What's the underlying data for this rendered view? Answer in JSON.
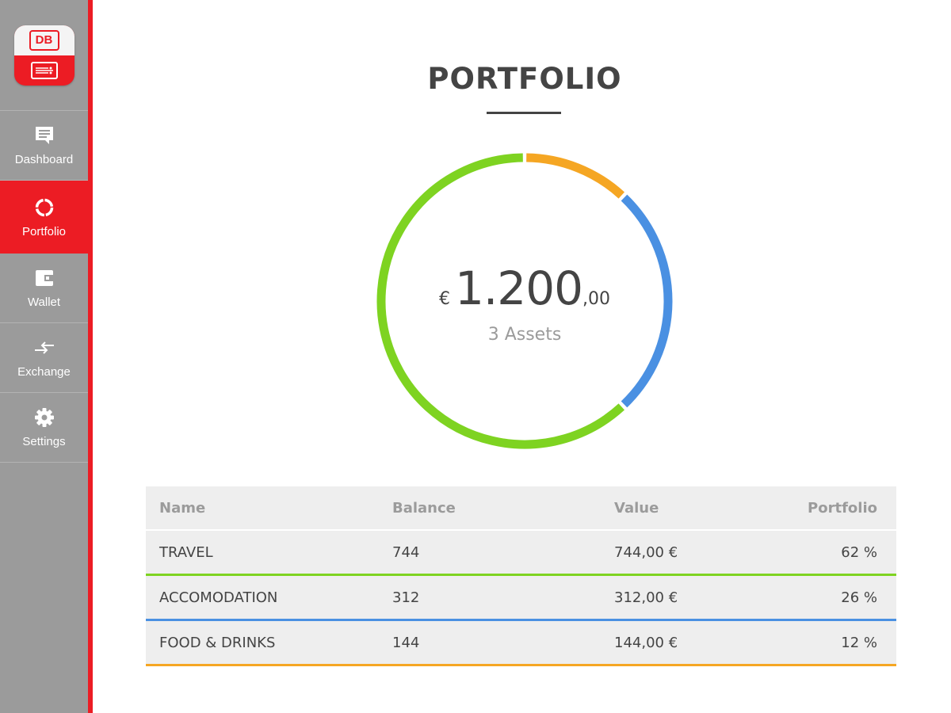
{
  "app": {
    "logo_text": "DB"
  },
  "sidebar": {
    "items": [
      {
        "label": "Dashboard",
        "icon": "chat-bubble-icon",
        "active": false
      },
      {
        "label": "Portfolio",
        "icon": "donut-icon",
        "active": true
      },
      {
        "label": "Wallet",
        "icon": "wallet-icon",
        "active": false
      },
      {
        "label": "Exchange",
        "icon": "exchange-arrows-icon",
        "active": false
      },
      {
        "label": "Settings",
        "icon": "gear-icon",
        "active": false
      }
    ]
  },
  "page": {
    "title": "PORTFOLIO"
  },
  "summary": {
    "currency": "€",
    "amount_integer": "1.200",
    "amount_decimals": ",00",
    "assets_label": "3 Assets"
  },
  "colors": {
    "travel": "#7ed321",
    "accomodation": "#4a90e2",
    "food_drinks": "#f5a623",
    "accent": "#ec1c24",
    "sidebar": "#9b9b9b"
  },
  "table": {
    "headers": [
      "Name",
      "Balance",
      "Value",
      "Portfolio"
    ],
    "rows": [
      {
        "name": "TRAVEL",
        "balance": "744",
        "value": "744,00 €",
        "portfolio": "62 %",
        "color": "#7ed321"
      },
      {
        "name": "ACCOMODATION",
        "balance": "312",
        "value": "312,00 €",
        "portfolio": "26 %",
        "color": "#4a90e2"
      },
      {
        "name": "FOOD & DRINKS",
        "balance": "144",
        "value": "144,00 €",
        "portfolio": "12 %",
        "color": "#f5a623"
      }
    ]
  },
  "chart_data": {
    "type": "pie",
    "categories": [
      "TRAVEL",
      "ACCOMODATION",
      "FOOD & DRINKS"
    ],
    "values": [
      62,
      26,
      12
    ],
    "colors": [
      "#7ed321",
      "#4a90e2",
      "#f5a623"
    ]
  }
}
